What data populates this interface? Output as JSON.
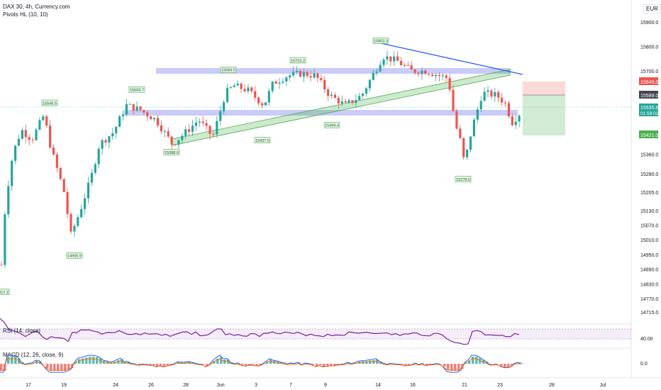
{
  "header": {
    "title": "DAX 30, 4h, Currency.com",
    "indicator": "Pivots HL (10, 10)"
  },
  "currency": "EUR",
  "price_axis": {
    "ticks": [
      "15900.0",
      "15800.0",
      "15700.0",
      "15645.0",
      "15588.0",
      "15535.8",
      "01:59:02",
      "15421.0",
      "15360.0",
      "15280.0",
      "15205.0",
      "15130.0",
      "15070.0",
      "15010.0",
      "14950.0",
      "14890.0",
      "14830.0",
      "14770.0",
      "14715.0"
    ]
  },
  "badges": {
    "stop": "15645.0",
    "entry": "15588.0",
    "last": "15535.8",
    "timer": "01:59:02",
    "target": "15421.0"
  },
  "time_axis": [
    "17",
    "19",
    "24",
    "26",
    "28",
    "Jun",
    "3",
    "7",
    "9",
    "14",
    "16",
    "21",
    "23",
    "28",
    "Jul"
  ],
  "rsi": {
    "label": "RSI (14, close)",
    "level": "40.00"
  },
  "macd": {
    "label": "MACD (12, 26, close, 9)",
    "level": "0.0"
  },
  "colors": {
    "up": "#26a69a",
    "down": "#ef5350",
    "zone": "#b2b5f7",
    "trend": "#4caf50",
    "resistance": "#2962ff",
    "rsi": "#7b1fa2"
  },
  "chart_data": {
    "type": "candlestick",
    "symbol": "DAX 30",
    "timeframe": "4h",
    "pivot_labels": [
      {
        "x": "May 13",
        "value": 14817.2
      },
      {
        "x": "May 18",
        "value": 15549.5
      },
      {
        "x": "May 19",
        "value": 14965.9
      },
      {
        "x": "May 21",
        "value": 15603.7
      },
      {
        "x": "May 27",
        "value": 15388.0
      },
      {
        "x": "Jun 1",
        "value": 15684.5
      },
      {
        "x": "Jun 2",
        "value": 15437.5
      },
      {
        "x": "Jun 7",
        "value": 15723.2
      },
      {
        "x": "Jun 10",
        "value": 15499.4
      },
      {
        "x": "Jun 14",
        "value": 15803.3
      },
      {
        "x": "Jun 21",
        "value": 15278.0
      }
    ],
    "position": {
      "stop": 15645.0,
      "entry": 15588.0,
      "target": 15421.0,
      "last": 15535.8
    },
    "ylim": [
      14715,
      15950
    ]
  }
}
